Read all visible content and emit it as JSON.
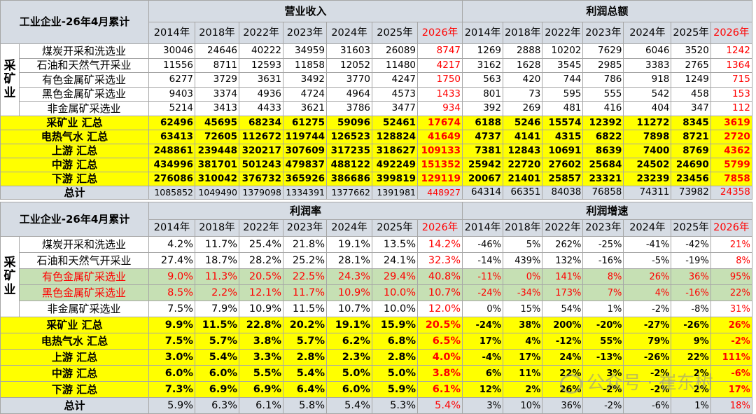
{
  "top": {
    "corner": "工业企业-26年4月累计",
    "group_headers": [
      "营业收入",
      "利润总额"
    ],
    "years": [
      "2014年",
      "2018年",
      "2022年",
      "2023年",
      "2024年",
      "2025年",
      "2026年"
    ],
    "side_label": "采矿业",
    "rows": [
      {
        "name": "煤炭开采和洗选业",
        "rev": [
          "30046",
          "24646",
          "40222",
          "34959",
          "31603",
          "26089",
          "8747"
        ],
        "profit": [
          "1269",
          "2888",
          "10202",
          "7629",
          "6046",
          "3520",
          "1242"
        ]
      },
      {
        "name": "石油和天然气开采业",
        "rev": [
          "11556",
          "8711",
          "12593",
          "11858",
          "12052",
          "11480",
          "4217"
        ],
        "profit": [
          "3162",
          "1628",
          "3545",
          "2985",
          "3383",
          "2765",
          "1364"
        ]
      },
      {
        "name": "有色金属矿采选业",
        "rev": [
          "6277",
          "3729",
          "3631",
          "3492",
          "3770",
          "4247",
          "1750"
        ],
        "profit": [
          "563",
          "420",
          "744",
          "786",
          "918",
          "1249",
          "715"
        ]
      },
      {
        "name": "黑色金属矿采选业",
        "rev": [
          "9403",
          "3374",
          "4936",
          "4724",
          "4964",
          "4573",
          "1433"
        ],
        "profit": [
          "801",
          "73",
          "595",
          "555",
          "542",
          "458",
          "153"
        ]
      },
      {
        "name": "非金属矿采选业",
        "rev": [
          "5214",
          "3413",
          "4433",
          "3621",
          "3786",
          "3477",
          "934"
        ],
        "profit": [
          "392",
          "269",
          "481",
          "416",
          "404",
          "347",
          "112"
        ]
      }
    ],
    "summary": [
      {
        "name": "采矿业 汇总",
        "rev": [
          "62496",
          "45695",
          "68234",
          "61275",
          "59096",
          "52461",
          "17674"
        ],
        "profit": [
          "6188",
          "5246",
          "15574",
          "12392",
          "11272",
          "8345",
          "3619"
        ]
      },
      {
        "name": "电热气水 汇总",
        "rev": [
          "63413",
          "72605",
          "112672",
          "119744",
          "126523",
          "128824",
          "41649"
        ],
        "profit": [
          "4737",
          "4141",
          "4315",
          "6822",
          "7898",
          "8721",
          "2720"
        ]
      },
      {
        "name": "上游 汇总",
        "rev": [
          "248861",
          "239448",
          "320217",
          "307609",
          "317235",
          "318627",
          "109133"
        ],
        "profit": [
          "7381",
          "12843",
          "10691",
          "8639",
          "7400",
          "8769",
          "4362"
        ]
      },
      {
        "name": "中游 汇总",
        "rev": [
          "434996",
          "381701",
          "501243",
          "479837",
          "488122",
          "492249",
          "151352"
        ],
        "profit": [
          "25942",
          "22720",
          "27602",
          "25684",
          "24502",
          "24690",
          "5799"
        ]
      },
      {
        "name": "下游 汇总",
        "rev": [
          "276086",
          "310042",
          "376732",
          "365926",
          "386686",
          "399819",
          "129119"
        ],
        "profit": [
          "20067",
          "21401",
          "25857",
          "23321",
          "23239",
          "23456",
          "7858"
        ]
      }
    ],
    "total": {
      "name": "总计",
      "rev": [
        "1085852",
        "1049490",
        "1379098",
        "1334391",
        "1377662",
        "1391981",
        "448927"
      ],
      "profit": [
        "64314",
        "66351",
        "84038",
        "76858",
        "74311",
        "73982",
        "24358"
      ]
    }
  },
  "bottom": {
    "corner": "工业企业-26年4月累计",
    "group_headers": [
      "利润率",
      "利润增速"
    ],
    "years": [
      "2014年",
      "2018年",
      "2022年",
      "2023年",
      "2024年",
      "2025年",
      "2026年"
    ],
    "side_label": "采矿业",
    "rows": [
      {
        "name": "煤炭开采和洗选业",
        "margin": [
          "4.2%",
          "11.7%",
          "25.4%",
          "21.8%",
          "19.1%",
          "13.5%",
          "14.2%"
        ],
        "growth": [
          "-46%",
          "5%",
          "262%",
          "-25%",
          "-41%",
          "-42%",
          "21%"
        ],
        "highlight": false
      },
      {
        "name": "石油和天然气开采业",
        "margin": [
          "27.4%",
          "18.7%",
          "28.2%",
          "25.2%",
          "28.1%",
          "24.1%",
          "32.3%"
        ],
        "growth": [
          "-14%",
          "439%",
          "132%",
          "-16%",
          "-5%",
          "-19%",
          "8%"
        ],
        "highlight": false
      },
      {
        "name": "有色金属矿采选业",
        "margin": [
          "9.0%",
          "11.3%",
          "20.5%",
          "22.5%",
          "24.3%",
          "29.4%",
          "40.8%"
        ],
        "growth": [
          "-11%",
          "0%",
          "141%",
          "8%",
          "26%",
          "36%",
          "95%"
        ],
        "highlight": true
      },
      {
        "name": "黑色金属矿采选业",
        "margin": [
          "8.5%",
          "2.2%",
          "12.1%",
          "11.7%",
          "10.9%",
          "10.0%",
          "10.7%"
        ],
        "growth": [
          "-24%",
          "-34%",
          "173%",
          "7%",
          "4%",
          "-16%",
          "22%"
        ],
        "highlight": true
      },
      {
        "name": "非金属矿采选业",
        "margin": [
          "7.5%",
          "7.9%",
          "10.9%",
          "11.5%",
          "10.7%",
          "10.0%",
          "12.0%"
        ],
        "growth": [
          "0%",
          "15%",
          "54%",
          "1%",
          "-2%",
          "-8%",
          "31%"
        ],
        "highlight": false
      }
    ],
    "summary": [
      {
        "name": "采矿业 汇总",
        "margin": [
          "9.9%",
          "11.5%",
          "22.8%",
          "20.2%",
          "19.1%",
          "15.9%",
          "20.5%"
        ],
        "growth": [
          "-24%",
          "38%",
          "200%",
          "-20%",
          "-27%",
          "-26%",
          "26%"
        ]
      },
      {
        "name": "电热气水 汇总",
        "margin": [
          "7.5%",
          "5.7%",
          "3.8%",
          "5.7%",
          "6.2%",
          "6.8%",
          "6.5%"
        ],
        "growth": [
          "17%",
          "4%",
          "-12%",
          "55%",
          "79%",
          "9%",
          "-2%"
        ]
      },
      {
        "name": "上游 汇总",
        "margin": [
          "3.0%",
          "5.4%",
          "3.3%",
          "2.8%",
          "2.3%",
          "2.8%",
          "4.0%"
        ],
        "growth": [
          "-4%",
          "17%",
          "24%",
          "-13%",
          "-26%",
          "22%",
          "111%"
        ]
      },
      {
        "name": "中游 汇总",
        "margin": [
          "6.0%",
          "6.0%",
          "5.5%",
          "5.4%",
          "5.0%",
          "5.0%",
          "3.8%"
        ],
        "growth": [
          "6%",
          "11%",
          "22%",
          "3%",
          "-2%",
          "2%",
          "-6%"
        ]
      },
      {
        "name": "下游 汇总",
        "margin": [
          "7.3%",
          "6.9%",
          "6.9%",
          "6.4%",
          "6.0%",
          "5.9%",
          "6.1%"
        ],
        "growth": [
          "12%",
          "2%",
          "26%",
          "-2%",
          "-2%",
          "2%",
          "17%"
        ]
      }
    ],
    "total": {
      "name": "总计",
      "margin": [
        "5.9%",
        "6.3%",
        "6.1%",
        "5.8%",
        "5.4%",
        "5.3%",
        "5.4%"
      ],
      "growth": [
        "3%",
        "10%",
        "36%",
        "-2%",
        "-6%",
        "1%",
        "18%"
      ]
    }
  },
  "watermark": "公众号 · 崔东树",
  "colors": {
    "header_bg": "#d6dce4",
    "summary_bg": "#ffff00",
    "highlight_bg": "#c6e0b4",
    "accent_red": "#ff0000"
  }
}
